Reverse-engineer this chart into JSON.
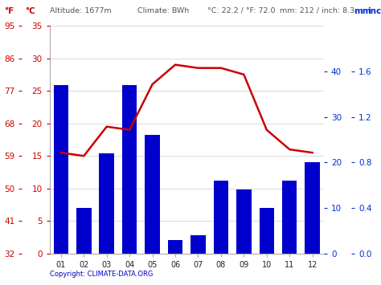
{
  "months": [
    "01",
    "02",
    "03",
    "04",
    "05",
    "06",
    "07",
    "08",
    "09",
    "10",
    "11",
    "12"
  ],
  "precip_mm": [
    37,
    10,
    22,
    37,
    26,
    3,
    4,
    16,
    14,
    10,
    16,
    20
  ],
  "temp_c": [
    15.5,
    15.0,
    19.5,
    19.0,
    26.0,
    29.0,
    28.5,
    28.5,
    27.5,
    19.0,
    16.0,
    15.5
  ],
  "bar_color": "#0000cc",
  "line_color": "#cc0000",
  "background_color": "#ffffff",
  "grid_color": "#cccccc",
  "c_ticks": [
    0,
    5,
    10,
    15,
    20,
    25,
    30,
    35
  ],
  "f_ticks": [
    32,
    41,
    50,
    59,
    68,
    77,
    86,
    95
  ],
  "mm_ticks": [
    0,
    10,
    20,
    30,
    40
  ],
  "inch_ticks": [
    "0.0",
    "0.4",
    "0.8",
    "1.2",
    "1.6"
  ],
  "temp_max_c": 35,
  "precip_max_mm": 50,
  "copyright_text": "Copyright: CLIMATE-DATA.ORG",
  "copyright_color": "#0000bb",
  "header_color": "#555555",
  "red_color": "#cc0000",
  "blue_color": "#0033cc"
}
